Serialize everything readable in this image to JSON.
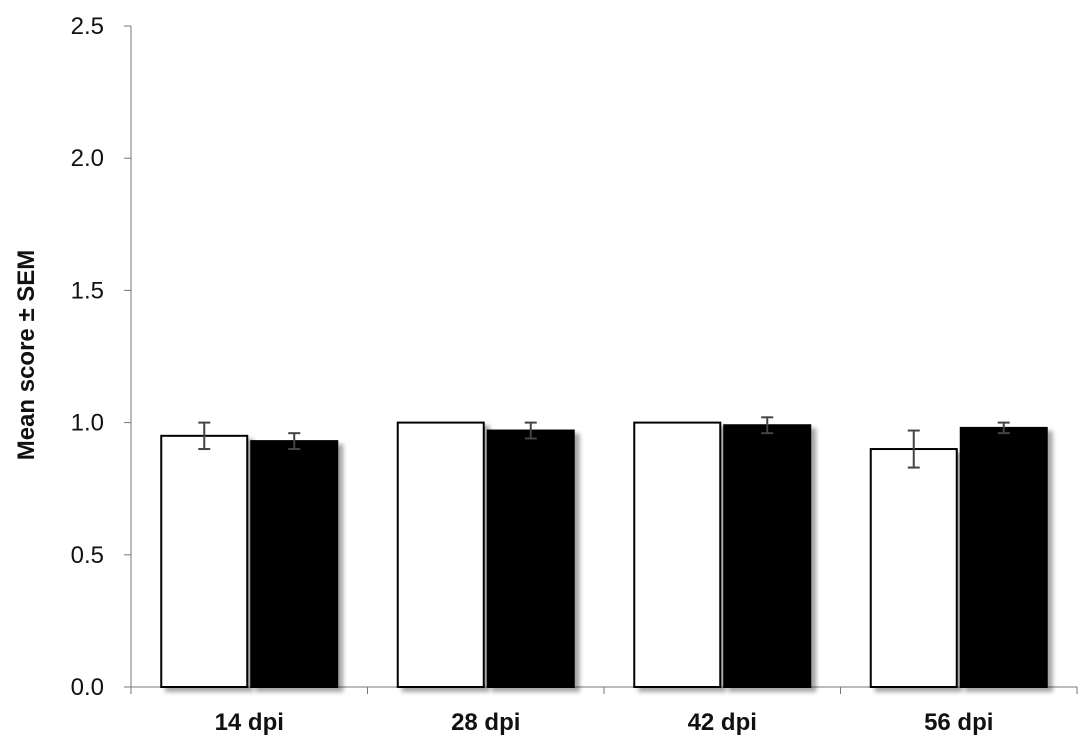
{
  "chart_data": {
    "type": "bar",
    "title": "",
    "xlabel": "",
    "ylabel": "Mean score ± SEM",
    "categories": [
      "14 dpi",
      "28 dpi",
      "42 dpi",
      "56 dpi"
    ],
    "ylim": [
      0.0,
      2.5
    ],
    "yticks": [
      "0.0",
      "0.5",
      "1.0",
      "1.5",
      "2.0",
      "2.5"
    ],
    "grid": true,
    "legend": "none",
    "series": [
      {
        "fill": "#ffffff",
        "values": [
          0.95,
          1.0,
          1.0,
          0.9
        ],
        "errors": [
          0.05,
          0.0,
          0.0,
          0.07
        ]
      },
      {
        "fill": "#000000",
        "values": [
          0.93,
          0.97,
          0.99,
          0.98
        ],
        "errors": [
          0.03,
          0.03,
          0.03,
          0.02
        ]
      }
    ]
  }
}
